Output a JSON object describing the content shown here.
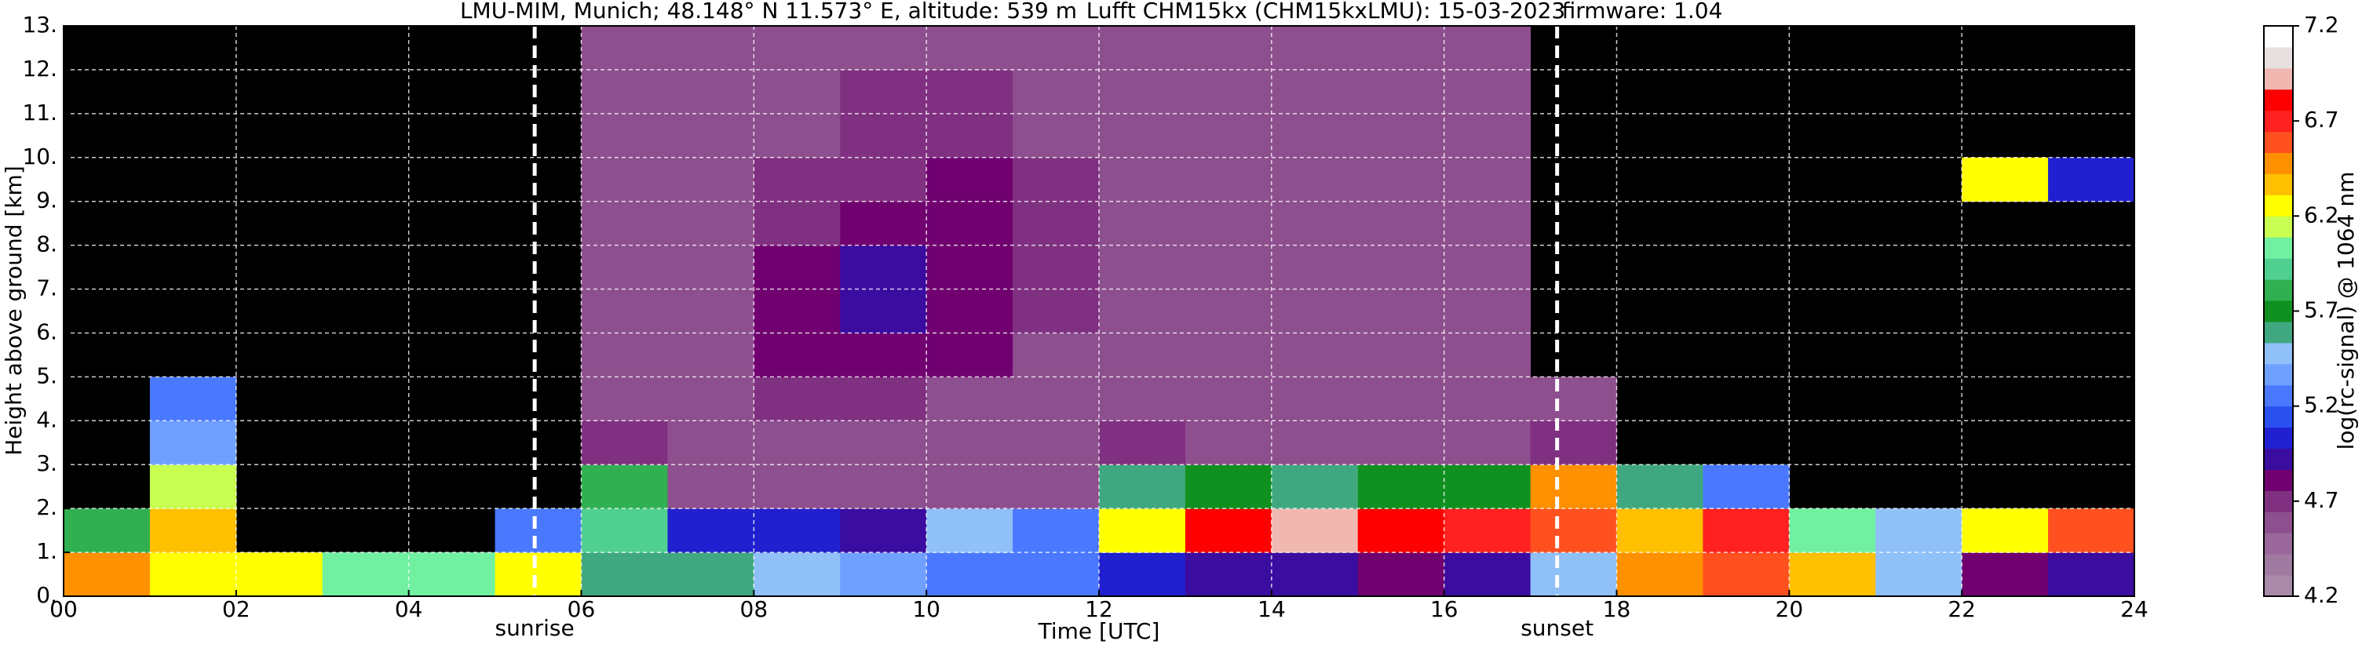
{
  "chart_data": {
    "type": "heatmap",
    "title_parts": [
      "LMU-MIM, Munich; 48.148° N 11.573° E, altitude: 539 m",
      "Lufft CHM15kx (CHM15kxLMU): 15-03-2023",
      "firmware: 1.04"
    ],
    "x_label": "Time [UTC]",
    "y_label": "Height above ground [km]",
    "colorbar_label": "log(rc-signal) @ 1064 nm",
    "xlim": [
      0,
      24
    ],
    "ylim": [
      0,
      13
    ],
    "xticks": [
      {
        "value": 0,
        "label": "00"
      },
      {
        "value": 2,
        "label": "02"
      },
      {
        "value": 4,
        "label": "04"
      },
      {
        "value": 6,
        "label": "06"
      },
      {
        "value": 8,
        "label": "08"
      },
      {
        "value": 10,
        "label": "10"
      },
      {
        "value": 12,
        "label": "12"
      },
      {
        "value": 14,
        "label": "14"
      },
      {
        "value": 16,
        "label": "16"
      },
      {
        "value": 18,
        "label": "18"
      },
      {
        "value": 20,
        "label": "20"
      },
      {
        "value": 22,
        "label": "22"
      },
      {
        "value": 24,
        "label": "24"
      }
    ],
    "yticks": [
      {
        "value": 0,
        "label": "0."
      },
      {
        "value": 1,
        "label": "1."
      },
      {
        "value": 2,
        "label": "2."
      },
      {
        "value": 3,
        "label": "3."
      },
      {
        "value": 4,
        "label": "4."
      },
      {
        "value": 5,
        "label": "5."
      },
      {
        "value": 6,
        "label": "6."
      },
      {
        "value": 7,
        "label": "7."
      },
      {
        "value": 8,
        "label": "8."
      },
      {
        "value": 9,
        "label": "9."
      },
      {
        "value": 10,
        "label": "10."
      },
      {
        "value": 11,
        "label": "11."
      },
      {
        "value": 12,
        "label": "12."
      },
      {
        "value": 13,
        "label": "13."
      }
    ],
    "grid": true,
    "events": [
      {
        "label": "sunrise",
        "x": 5.46
      },
      {
        "label": "sunset",
        "x": 17.31
      }
    ],
    "x_bins": [
      0,
      1,
      2,
      3,
      4,
      5,
      6,
      7,
      8,
      9,
      10,
      11,
      12,
      13,
      14,
      15,
      16,
      17,
      18,
      19,
      20,
      21,
      22,
      23,
      24
    ],
    "y_bins": [
      0,
      1,
      2,
      3,
      4,
      5,
      6,
      7,
      8,
      9,
      10,
      11,
      12,
      13
    ],
    "values": [
      [
        6.5,
        6.3,
        6.3,
        6.0,
        6.0,
        6.2,
        5.6,
        5.6,
        5.5,
        5.4,
        5.3,
        5.2,
        5.0,
        4.9,
        4.9,
        4.8,
        4.9,
        5.5,
        6.5,
        6.6,
        6.4,
        5.5,
        4.8,
        4.9
      ],
      [
        5.8,
        6.4,
        null,
        null,
        null,
        5.3,
        5.9,
        5.0,
        5.0,
        4.9,
        5.5,
        5.2,
        6.3,
        6.8,
        6.9,
        6.8,
        6.7,
        6.6,
        6.4,
        6.7,
        6.0,
        5.5,
        6.3,
        6.6
      ],
      [
        null,
        6.1,
        null,
        null,
        null,
        null,
        5.8,
        4.6,
        4.6,
        4.6,
        4.6,
        4.6,
        5.6,
        5.7,
        5.6,
        5.7,
        5.7,
        6.5,
        5.6,
        5.2,
        null,
        null,
        null,
        null
      ],
      [
        null,
        5.4,
        null,
        null,
        null,
        null,
        4.7,
        4.6,
        4.6,
        4.6,
        4.6,
        4.6,
        4.7,
        4.6,
        4.6,
        4.6,
        4.6,
        4.7,
        null,
        null,
        null,
        null,
        null,
        null
      ],
      [
        null,
        5.3,
        null,
        null,
        null,
        null,
        4.6,
        4.6,
        4.7,
        4.7,
        4.6,
        4.6,
        4.6,
        4.6,
        4.6,
        4.6,
        4.6,
        4.6,
        null,
        null,
        null,
        null,
        null,
        null
      ],
      [
        null,
        null,
        null,
        null,
        null,
        null,
        4.6,
        4.6,
        4.8,
        4.8,
        4.8,
        4.6,
        4.6,
        4.6,
        4.6,
        4.6,
        4.6,
        null,
        null,
        null,
        null,
        null,
        null,
        null
      ],
      [
        null,
        null,
        null,
        null,
        null,
        null,
        4.6,
        4.6,
        4.8,
        4.9,
        4.8,
        4.7,
        4.6,
        4.6,
        4.6,
        4.6,
        4.6,
        null,
        null,
        null,
        null,
        null,
        null,
        null
      ],
      [
        null,
        null,
        null,
        null,
        null,
        null,
        4.6,
        4.6,
        4.8,
        4.9,
        4.8,
        4.7,
        4.6,
        4.6,
        4.6,
        4.6,
        4.6,
        null,
        null,
        null,
        null,
        null,
        null,
        null
      ],
      [
        null,
        null,
        null,
        null,
        null,
        null,
        4.6,
        4.6,
        4.7,
        4.8,
        4.8,
        4.7,
        4.6,
        4.6,
        4.6,
        4.6,
        4.6,
        null,
        null,
        null,
        null,
        null,
        null,
        null
      ],
      [
        null,
        null,
        null,
        null,
        null,
        null,
        4.6,
        4.6,
        4.7,
        4.7,
        4.8,
        4.7,
        4.6,
        4.6,
        4.6,
        4.6,
        4.6,
        null,
        null,
        null,
        null,
        null,
        6.2,
        5.0
      ],
      [
        null,
        null,
        null,
        null,
        null,
        null,
        4.6,
        4.6,
        4.6,
        4.7,
        4.7,
        4.6,
        4.6,
        4.6,
        4.6,
        4.6,
        4.6,
        null,
        null,
        null,
        null,
        null,
        null,
        null
      ],
      [
        null,
        null,
        null,
        null,
        null,
        null,
        4.6,
        4.6,
        4.6,
        4.7,
        4.7,
        4.6,
        4.6,
        4.6,
        4.6,
        4.6,
        4.6,
        null,
        null,
        null,
        null,
        null,
        null,
        null
      ],
      [
        null,
        null,
        null,
        null,
        null,
        null,
        4.6,
        4.6,
        4.6,
        4.6,
        4.6,
        4.6,
        4.6,
        4.6,
        4.6,
        4.6,
        4.6,
        null,
        null,
        null,
        null,
        null,
        null,
        null
      ]
    ],
    "clim": [
      4.2,
      7.2
    ],
    "colorbar_ticks": [
      4.2,
      4.7,
      5.2,
      5.7,
      6.2,
      6.7,
      7.2
    ],
    "colormap": [
      "#a98aa9",
      "#a07aa0",
      "#9a689a",
      "#8e4f8e",
      "#803080",
      "#700070",
      "#3a0ca0",
      "#2020d0",
      "#2a50f0",
      "#4a78ff",
      "#70a0ff",
      "#90c0f8",
      "#40a880",
      "#109020",
      "#30b050",
      "#50d090",
      "#70f0a0",
      "#c8ff50",
      "#ffff00",
      "#ffc000",
      "#ff9000",
      "#ff5020",
      "#ff2020",
      "#ff0000",
      "#f0b8b0",
      "#e8e0e0",
      "#ffffff"
    ],
    "background": "#000000",
    "event_line_color": "#ffffff"
  }
}
